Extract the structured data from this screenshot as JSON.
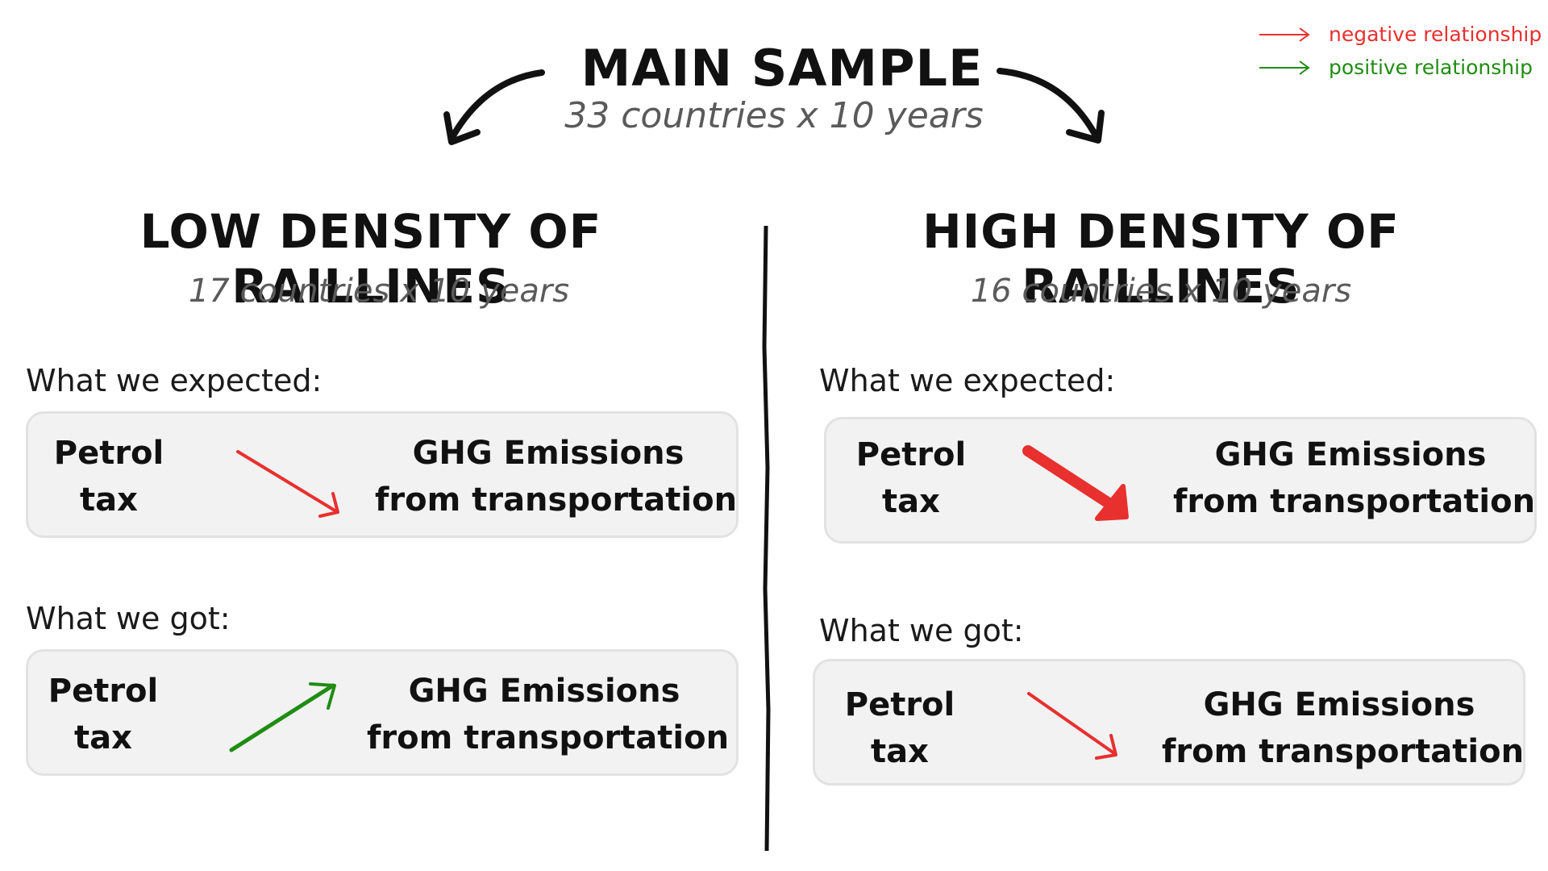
{
  "header": {
    "title": "MAIN SAMPLE",
    "subtitle": "33 countries x 10 years"
  },
  "legend": [
    {
      "label": "negative relationship",
      "color": "#e8302e"
    },
    {
      "label": "positive relationship",
      "color": "#1f8c12"
    }
  ],
  "low": {
    "title": "LOW DENSITY OF RAILLINES",
    "subtitle": "17 countries x 10 years",
    "expected": {
      "label": "What we expected:",
      "cause": [
        "Petrol",
        "tax"
      ],
      "effect": [
        "GHG Emissions",
        "from transportation"
      ],
      "relationship": "negative"
    },
    "got": {
      "label": "What we got:",
      "cause": [
        "Petrol",
        "tax"
      ],
      "effect": [
        "GHG Emissions",
        "from transportation"
      ],
      "relationship": "positive"
    }
  },
  "high": {
    "title": "HIGH DENSITY OF RAILLINES",
    "subtitle": "16 countries x 10 years",
    "expected": {
      "label": "What we expected:",
      "cause": [
        "Petrol",
        "tax"
      ],
      "effect": [
        "GHG Emissions",
        "from transportation"
      ],
      "relationship": "strong negative"
    },
    "got": {
      "label": "What we got:",
      "cause": [
        "Petrol",
        "tax"
      ],
      "effect": [
        "GHG Emissions",
        "from transportation"
      ],
      "relationship": "negative"
    }
  },
  "colors": {
    "negative": "#e8302e",
    "positive": "#1f8c12",
    "box_bg": "#f2f2f2",
    "subtitle_gray": "#5a5a5a"
  },
  "icons": {
    "split_arrows": "curved-arrow-icon",
    "relationship_arrows": "arrow-icon"
  }
}
